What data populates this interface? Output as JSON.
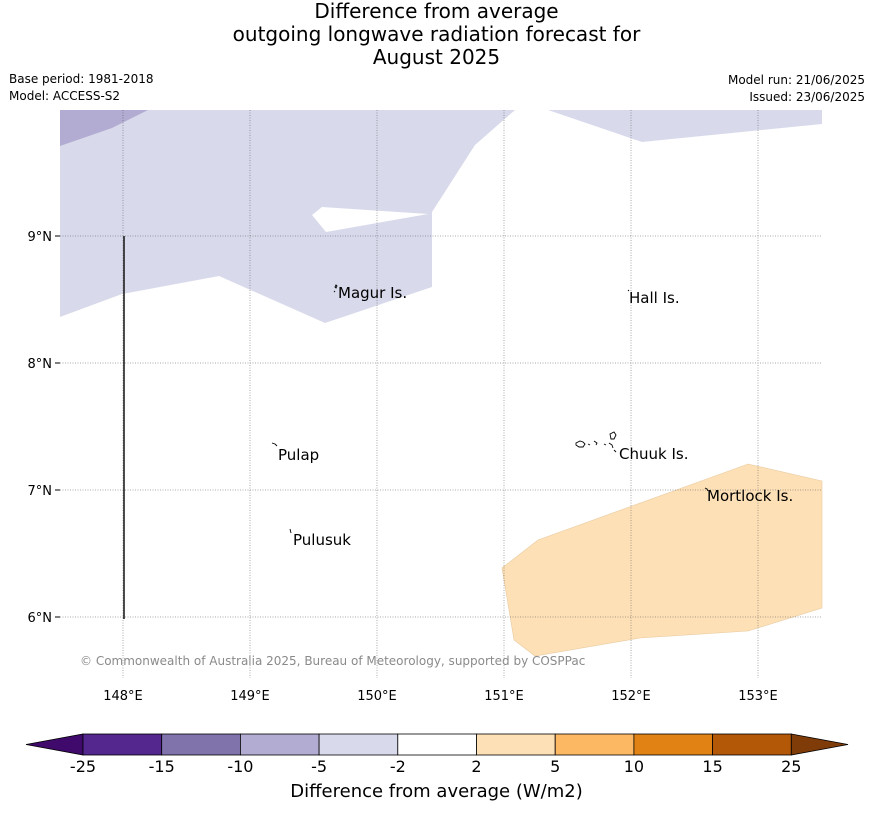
{
  "header": {
    "title_lines": [
      "Difference from average",
      "outgoing longwave radiation forecast for",
      "August 2025"
    ],
    "base_period": "Base period: 1981-2018",
    "model": "Model: ACCESS-S2",
    "model_run": "Model run: 21/06/2025",
    "issued": "Issued: 23/06/2025"
  },
  "map": {
    "lon_ticks": [
      "148°E",
      "149°E",
      "150°E",
      "151°E",
      "152°E",
      "153°E"
    ],
    "lat_ticks": [
      "9°N",
      "8°N",
      "7°N",
      "6°N"
    ],
    "place_labels": [
      "Magur Is.",
      "Hall Is.",
      "Pulap",
      "Chuuk Is.",
      "Mortlock Is.",
      "Pulusuk"
    ],
    "copyright": "© Commonwealth of Australia 2025, Bureau of Meteorology, supported by COSPPac"
  },
  "colorbar": {
    "tick_labels": [
      "-25",
      "-15",
      "-10",
      "-5",
      "-2",
      "2",
      "5",
      "10",
      "15",
      "25"
    ],
    "colors": [
      "#3f0a6b",
      "#54278f",
      "#8073ac",
      "#b2abd2",
      "#d8daeb",
      "#ffffff",
      "#fee0b6",
      "#fdb863",
      "#e08214",
      "#b35806",
      "#7f3b08"
    ],
    "label": "Difference from average (W/m2)"
  }
}
